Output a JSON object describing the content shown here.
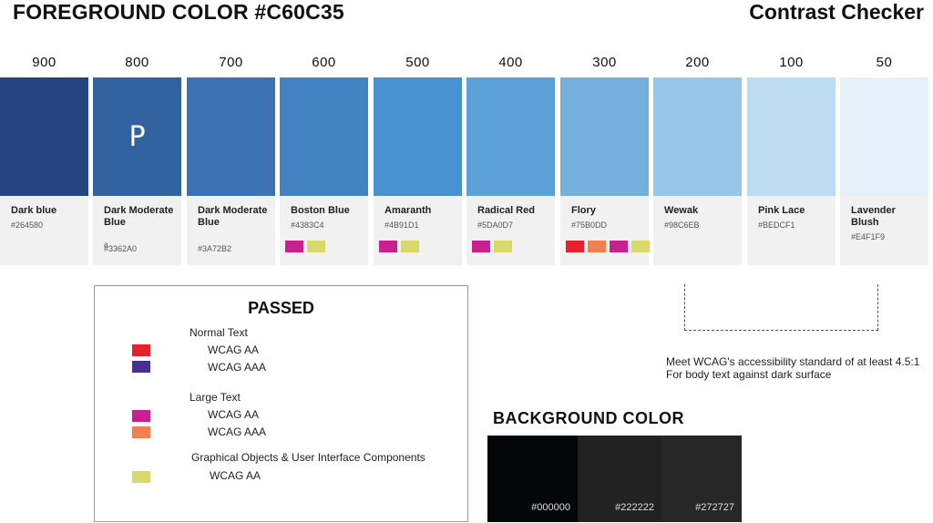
{
  "header": {
    "left_title": "FOREGROUND COLOR #C60C35",
    "right_title": "Contrast Checker"
  },
  "shades": [
    {
      "num": "900",
      "name": "Dark blue",
      "hex": "#264580",
      "swatch": "#264580",
      "letter": "",
      "extra": "",
      "dots": []
    },
    {
      "num": "800",
      "name": "Dark Moderate Blue",
      "hex": "#3362A0",
      "swatch": "#3362A0",
      "letter": "P",
      "extra": "a",
      "dots": []
    },
    {
      "num": "700",
      "name": "Dark Moderate Blue",
      "hex": "#3A72B2",
      "swatch": "#3A72B2",
      "letter": "",
      "extra": "",
      "dots": []
    },
    {
      "num": "600",
      "name": "Boston Blue",
      "hex": "#4383C4",
      "swatch": "#4383C4",
      "letter": "",
      "extra": "",
      "dots": [
        "#C8208F",
        "#D9D86A"
      ]
    },
    {
      "num": "500",
      "name": "Amaranth",
      "hex": "#4B91D1",
      "swatch": "#4B91D1",
      "letter": "",
      "extra": "",
      "dots": [
        "#C8208F",
        "#D9D86A"
      ]
    },
    {
      "num": "400",
      "name": "Radical Red",
      "hex": "#5DA0D7",
      "swatch": "#5DA0D7",
      "letter": "",
      "extra": "",
      "dots": [
        "#C8208F",
        "#D9D86A"
      ]
    },
    {
      "num": "300",
      "name": "Flory",
      "hex": "#75B0DD",
      "swatch": "#75B0DD",
      "letter": "",
      "extra": "",
      "dots": [
        "#E8202D",
        "#F08050",
        "#C8208F",
        "#D9D86A"
      ]
    },
    {
      "num": "200",
      "name": "Wewak",
      "hex": "#98C6EB",
      "swatch": "#98C6EB",
      "letter": "",
      "extra": "",
      "dots": []
    },
    {
      "num": "100",
      "name": "Pink Lace",
      "hex": "#BEDCF1",
      "swatch": "#BEDCF1",
      "letter": "",
      "extra": "",
      "dots": []
    },
    {
      "num": "50",
      "name": "Lavender Blush",
      "hex": "#E4F1F9",
      "swatch": "#E4F1F9",
      "letter": "",
      "extra": "",
      "dots": []
    }
  ],
  "passed": {
    "title": "PASSED",
    "normal_text": "Normal Text",
    "large_text": "Large Text",
    "graphical": "Graphical Objects & User Interface Components",
    "legend": [
      {
        "label": "WCAG AA",
        "color": "#E8202D"
      },
      {
        "label": "WCAG AAA",
        "color": "#4A2F92"
      },
      {
        "label": "WCAG AA",
        "color": "#C8208F"
      },
      {
        "label": "WCAG AAA",
        "color": "#F08050"
      },
      {
        "label": "WCAG AA",
        "color": "#D9D86A"
      }
    ]
  },
  "note": "Meet WCAG's accessibility standard of at least 4.5:1 For body text against dark surface",
  "background": {
    "title": "BACKGROUND  COLOR",
    "blocks": [
      {
        "hex": "#000000",
        "color": "#050607"
      },
      {
        "hex": "#222222",
        "color": "#222222"
      },
      {
        "hex": "#272727",
        "color": "#272727"
      }
    ]
  }
}
